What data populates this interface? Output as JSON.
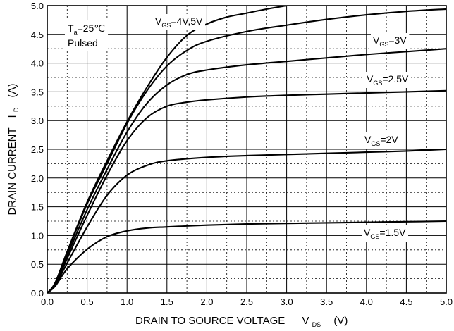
{
  "chart_data": {
    "type": "line",
    "title": "",
    "xlabel": {
      "main": "DRAIN TO SOURCE VOLTAGE",
      "symbol": "V",
      "symbol_sub": "DS",
      "unit": "(V)"
    },
    "ylabel": {
      "main": "DRAIN CURRENT",
      "symbol": "I",
      "symbol_sub": "D",
      "unit": "(A)"
    },
    "xlim": [
      0.0,
      5.0
    ],
    "ylim": [
      0.0,
      5.0
    ],
    "x_ticks": [
      "0.0",
      "0.5",
      "1.0",
      "1.5",
      "2.0",
      "2.5",
      "3.0",
      "3.5",
      "4.0",
      "4.5",
      "5.0"
    ],
    "y_ticks": [
      "0.0",
      "0.5",
      "1.0",
      "1.5",
      "2.0",
      "2.5",
      "3.0",
      "3.5",
      "4.0",
      "4.5",
      "5.0"
    ],
    "grid": "major solid, minor dotted",
    "condition_lines": [
      {
        "main": "T",
        "sub": "a",
        "rest": "=25℃"
      },
      {
        "main": "Pulsed",
        "sub": "",
        "rest": ""
      }
    ],
    "series": [
      {
        "label": {
          "main": "V",
          "sub": "GS",
          "rest": "=4V,5V"
        },
        "points": [
          [
            0,
            0
          ],
          [
            0.1,
            0.18
          ],
          [
            0.25,
            0.72
          ],
          [
            0.5,
            1.58
          ],
          [
            0.75,
            2.3
          ],
          [
            1.0,
            2.98
          ],
          [
            1.25,
            3.58
          ],
          [
            1.5,
            4.1
          ],
          [
            1.75,
            4.48
          ],
          [
            2.0,
            4.68
          ],
          [
            2.25,
            4.8
          ],
          [
            2.5,
            4.87
          ],
          [
            2.75,
            4.94
          ],
          [
            3.0,
            5.0
          ]
        ]
      },
      {
        "label": {
          "main": "V",
          "sub": "GS",
          "rest": "=4V,5V"
        },
        "points": [
          [
            0,
            0
          ],
          [
            0.1,
            0.17
          ],
          [
            0.25,
            0.7
          ],
          [
            0.5,
            1.55
          ],
          [
            0.75,
            2.25
          ],
          [
            1.0,
            2.95
          ],
          [
            1.25,
            3.52
          ],
          [
            1.5,
            3.95
          ],
          [
            1.75,
            4.22
          ],
          [
            2.0,
            4.38
          ],
          [
            2.5,
            4.55
          ],
          [
            3.0,
            4.66
          ],
          [
            3.5,
            4.76
          ],
          [
            4.0,
            4.84
          ],
          [
            4.5,
            4.9
          ],
          [
            5.0,
            4.94
          ]
        ]
      },
      {
        "label": {
          "main": "V",
          "sub": "GS",
          "rest": "=3V"
        },
        "points": [
          [
            0,
            0
          ],
          [
            0.1,
            0.16
          ],
          [
            0.25,
            0.65
          ],
          [
            0.5,
            1.45
          ],
          [
            0.75,
            2.15
          ],
          [
            1.0,
            2.8
          ],
          [
            1.25,
            3.3
          ],
          [
            1.5,
            3.62
          ],
          [
            1.75,
            3.8
          ],
          [
            2.0,
            3.88
          ],
          [
            2.5,
            3.97
          ],
          [
            3.0,
            4.03
          ],
          [
            3.5,
            4.09
          ],
          [
            4.0,
            4.15
          ],
          [
            4.5,
            4.2
          ],
          [
            5.0,
            4.25
          ]
        ]
      },
      {
        "label": {
          "main": "V",
          "sub": "GS",
          "rest": "=2.5V"
        },
        "points": [
          [
            0,
            0
          ],
          [
            0.1,
            0.15
          ],
          [
            0.25,
            0.6
          ],
          [
            0.5,
            1.35
          ],
          [
            0.75,
            2.05
          ],
          [
            1.0,
            2.65
          ],
          [
            1.25,
            3.05
          ],
          [
            1.5,
            3.25
          ],
          [
            1.75,
            3.32
          ],
          [
            2.0,
            3.36
          ],
          [
            2.5,
            3.41
          ],
          [
            3.0,
            3.44
          ],
          [
            3.5,
            3.46
          ],
          [
            4.0,
            3.48
          ],
          [
            4.5,
            3.5
          ],
          [
            5.0,
            3.52
          ]
        ]
      },
      {
        "label": {
          "main": "V",
          "sub": "GS",
          "rest": "=2V"
        },
        "points": [
          [
            0,
            0
          ],
          [
            0.1,
            0.14
          ],
          [
            0.25,
            0.52
          ],
          [
            0.5,
            1.15
          ],
          [
            0.75,
            1.7
          ],
          [
            1.0,
            2.05
          ],
          [
            1.25,
            2.22
          ],
          [
            1.5,
            2.3
          ],
          [
            2.0,
            2.36
          ],
          [
            2.5,
            2.39
          ],
          [
            3.0,
            2.41
          ],
          [
            3.5,
            2.43
          ],
          [
            4.0,
            2.45
          ],
          [
            4.5,
            2.47
          ],
          [
            5.0,
            2.5
          ]
        ]
      },
      {
        "label": {
          "main": "V",
          "sub": "GS",
          "rest": "=1.5V"
        },
        "points": [
          [
            0,
            0
          ],
          [
            0.1,
            0.12
          ],
          [
            0.25,
            0.42
          ],
          [
            0.5,
            0.76
          ],
          [
            0.75,
            0.98
          ],
          [
            1.0,
            1.08
          ],
          [
            1.25,
            1.13
          ],
          [
            1.5,
            1.15
          ],
          [
            2.0,
            1.18
          ],
          [
            2.5,
            1.2
          ],
          [
            3.0,
            1.21
          ],
          [
            3.5,
            1.22
          ],
          [
            4.0,
            1.23
          ],
          [
            4.5,
            1.24
          ],
          [
            5.0,
            1.25
          ]
        ]
      }
    ]
  }
}
